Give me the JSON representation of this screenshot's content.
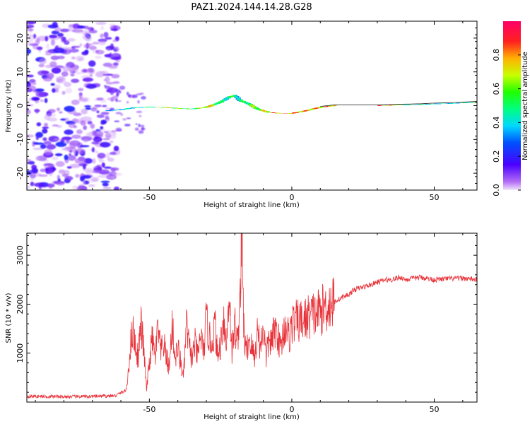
{
  "title": "PAZ1.2024.144.14.28.G28",
  "colors": {
    "snr_line": "#e8333a",
    "spectrogram_noise": "#9b5cf2",
    "ridge_core": "#e8333a",
    "axis": "#000000"
  },
  "chart_data": [
    {
      "type": "heatmap",
      "xlabel": "Height of straight line (km)",
      "ylabel": "Frequency (Hz)",
      "xlim": [
        -93,
        65
      ],
      "ylim": [
        -25,
        25
      ],
      "xticks": [
        -50,
        0,
        50
      ],
      "yticks": [
        -20,
        -10,
        0,
        10,
        20
      ],
      "grid": false,
      "colorbar": {
        "label": "Normalized spectral amplitude",
        "range": [
          0,
          1
        ],
        "ticks": [
          "0.0",
          "0.2",
          "0.4",
          "0.6",
          "0.8"
        ],
        "colormap": "gist_rainbow"
      },
      "noise_region_x": [
        -93,
        -61
      ],
      "ridge": {
        "x": [
          -65,
          -60,
          -55,
          -50,
          -45,
          -40,
          -35,
          -30,
          -25,
          -22,
          -20,
          -18,
          -15,
          -12,
          -10,
          -8,
          -5,
          0,
          5,
          10,
          15,
          20,
          25,
          30,
          35,
          40,
          45,
          50,
          55,
          60,
          65
        ],
        "freq": [
          -1.5,
          -1.2,
          -0.6,
          -0.4,
          -0.5,
          -0.8,
          -1.0,
          -0.5,
          1.0,
          2.5,
          3.0,
          1.5,
          0.5,
          -1.0,
          -1.5,
          -2.0,
          -2.2,
          -2.3,
          -1.5,
          -0.5,
          0.0,
          0.0,
          0.0,
          0.0,
          0.1,
          0.2,
          0.3,
          0.5,
          0.6,
          0.8,
          1.0
        ],
        "amplitude": [
          0.4,
          0.45,
          0.5,
          0.55,
          0.85,
          0.7,
          0.6,
          0.9,
          0.55,
          0.6,
          0.6,
          0.55,
          0.7,
          0.75,
          0.8,
          0.9,
          0.95,
          0.95,
          0.9,
          0.9,
          0.95,
          0.95,
          0.95,
          0.95,
          0.9,
          0.55,
          0.5,
          0.5,
          0.45,
          0.5,
          0.55
        ]
      }
    },
    {
      "type": "line",
      "xlabel": "Height of straight line (km)",
      "ylabel": "SNR (10 * v/v)",
      "xlim": [
        -93,
        65
      ],
      "ylim": [
        0,
        3450
      ],
      "xticks": [
        -50,
        0,
        50
      ],
      "yticks": [
        1000,
        2000,
        3000
      ],
      "grid": false,
      "series": [
        {
          "x": [
            -93,
            -80,
            -70,
            -62,
            -58,
            -57,
            -56,
            -55,
            -54,
            -53,
            -52,
            -51,
            -50,
            -49,
            -48,
            -47,
            -46,
            -45,
            -44,
            -43,
            -42,
            -41,
            -40,
            -39,
            -38,
            -37,
            -36,
            -35,
            -34,
            -33,
            -32,
            -31,
            -30,
            -29,
            -28,
            -27,
            -26,
            -25,
            -24,
            -23,
            -22,
            -21,
            -20,
            -19,
            -18,
            -17.5,
            -17,
            -16.5,
            -16,
            -15,
            -14,
            -13,
            -12,
            -11,
            -10,
            -9,
            -8,
            -7,
            -6,
            -5,
            -4,
            -3,
            -2,
            -1,
            0,
            2,
            4,
            6,
            8,
            10,
            12,
            15,
            18,
            20,
            22,
            25,
            28,
            30,
            33,
            35,
            38,
            40,
            45,
            50,
            55,
            60,
            65
          ],
          "y": [
            120,
            110,
            115,
            130,
            250,
            900,
            1500,
            1200,
            900,
            1600,
            1100,
            250,
            800,
            1300,
            900,
            1500,
            1000,
            1200,
            900,
            700,
            1600,
            900,
            1100,
            800,
            500,
            1600,
            1100,
            900,
            1200,
            900,
            1400,
            1000,
            1700,
            1300,
            1200,
            1600,
            900,
            1200,
            1800,
            1100,
            2300,
            1000,
            1600,
            1200,
            2500,
            3420,
            1800,
            1200,
            1000,
            1300,
            1100,
            900,
            1500,
            1100,
            1600,
            900,
            1300,
            1200,
            1500,
            1400,
            1100,
            1400,
            1600,
            1300,
            1600,
            1650,
            1650,
            1750,
            1800,
            1850,
            1950,
            2050,
            2150,
            2200,
            2300,
            2350,
            2400,
            2450,
            2500,
            2500,
            2550,
            2500,
            2550,
            2500,
            2520,
            2530,
            2500
          ]
        }
      ]
    }
  ]
}
